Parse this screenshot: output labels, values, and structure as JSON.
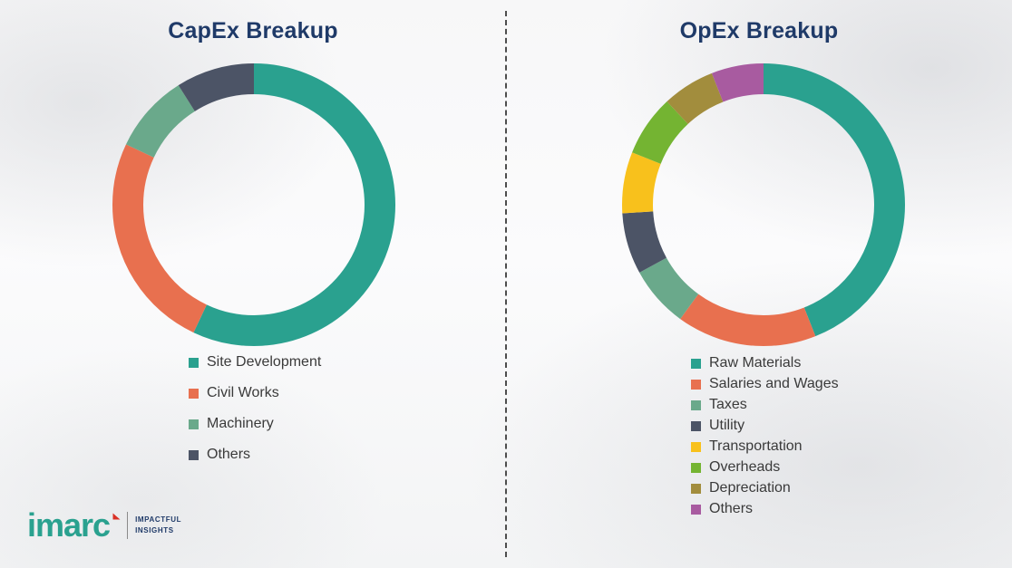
{
  "theme": {
    "title_color": "#1f3a68",
    "legend_text_color": "#3a3a3a",
    "brand_teal": "#2aa18f",
    "brand_red": "#d93025"
  },
  "chart_data": [
    {
      "type": "pie",
      "variant": "donut",
      "title": "CapEx Breakup",
      "categories": [
        "Site Development",
        "Civil Works",
        "Machinery",
        "Others"
      ],
      "values": [
        57,
        25,
        9,
        9
      ],
      "colors": [
        "#2aa18f",
        "#e8704f",
        "#6aa98b",
        "#4c5466"
      ],
      "values_are_percent_estimates": true,
      "legend_position": "below-left",
      "start_angle": "top",
      "direction": "clockwise"
    },
    {
      "type": "pie",
      "variant": "donut",
      "title": "OpEx Breakup",
      "categories": [
        "Raw Materials",
        "Salaries and Wages",
        "Taxes",
        "Utility",
        "Transportation",
        "Overheads",
        "Depreciation",
        "Others"
      ],
      "values": [
        44,
        16,
        7,
        7,
        7,
        7,
        6,
        6
      ],
      "colors": [
        "#2aa18f",
        "#e8704f",
        "#6aa98b",
        "#4c5466",
        "#f8c11c",
        "#74b432",
        "#a28d3d",
        "#a85ba0"
      ],
      "values_are_percent_estimates": true,
      "legend_position": "below-left",
      "start_angle": "top",
      "direction": "clockwise"
    }
  ],
  "logo": {
    "brand": "imarc",
    "tagline": [
      "IMPACTFUL",
      "INSIGHTS"
    ]
  }
}
